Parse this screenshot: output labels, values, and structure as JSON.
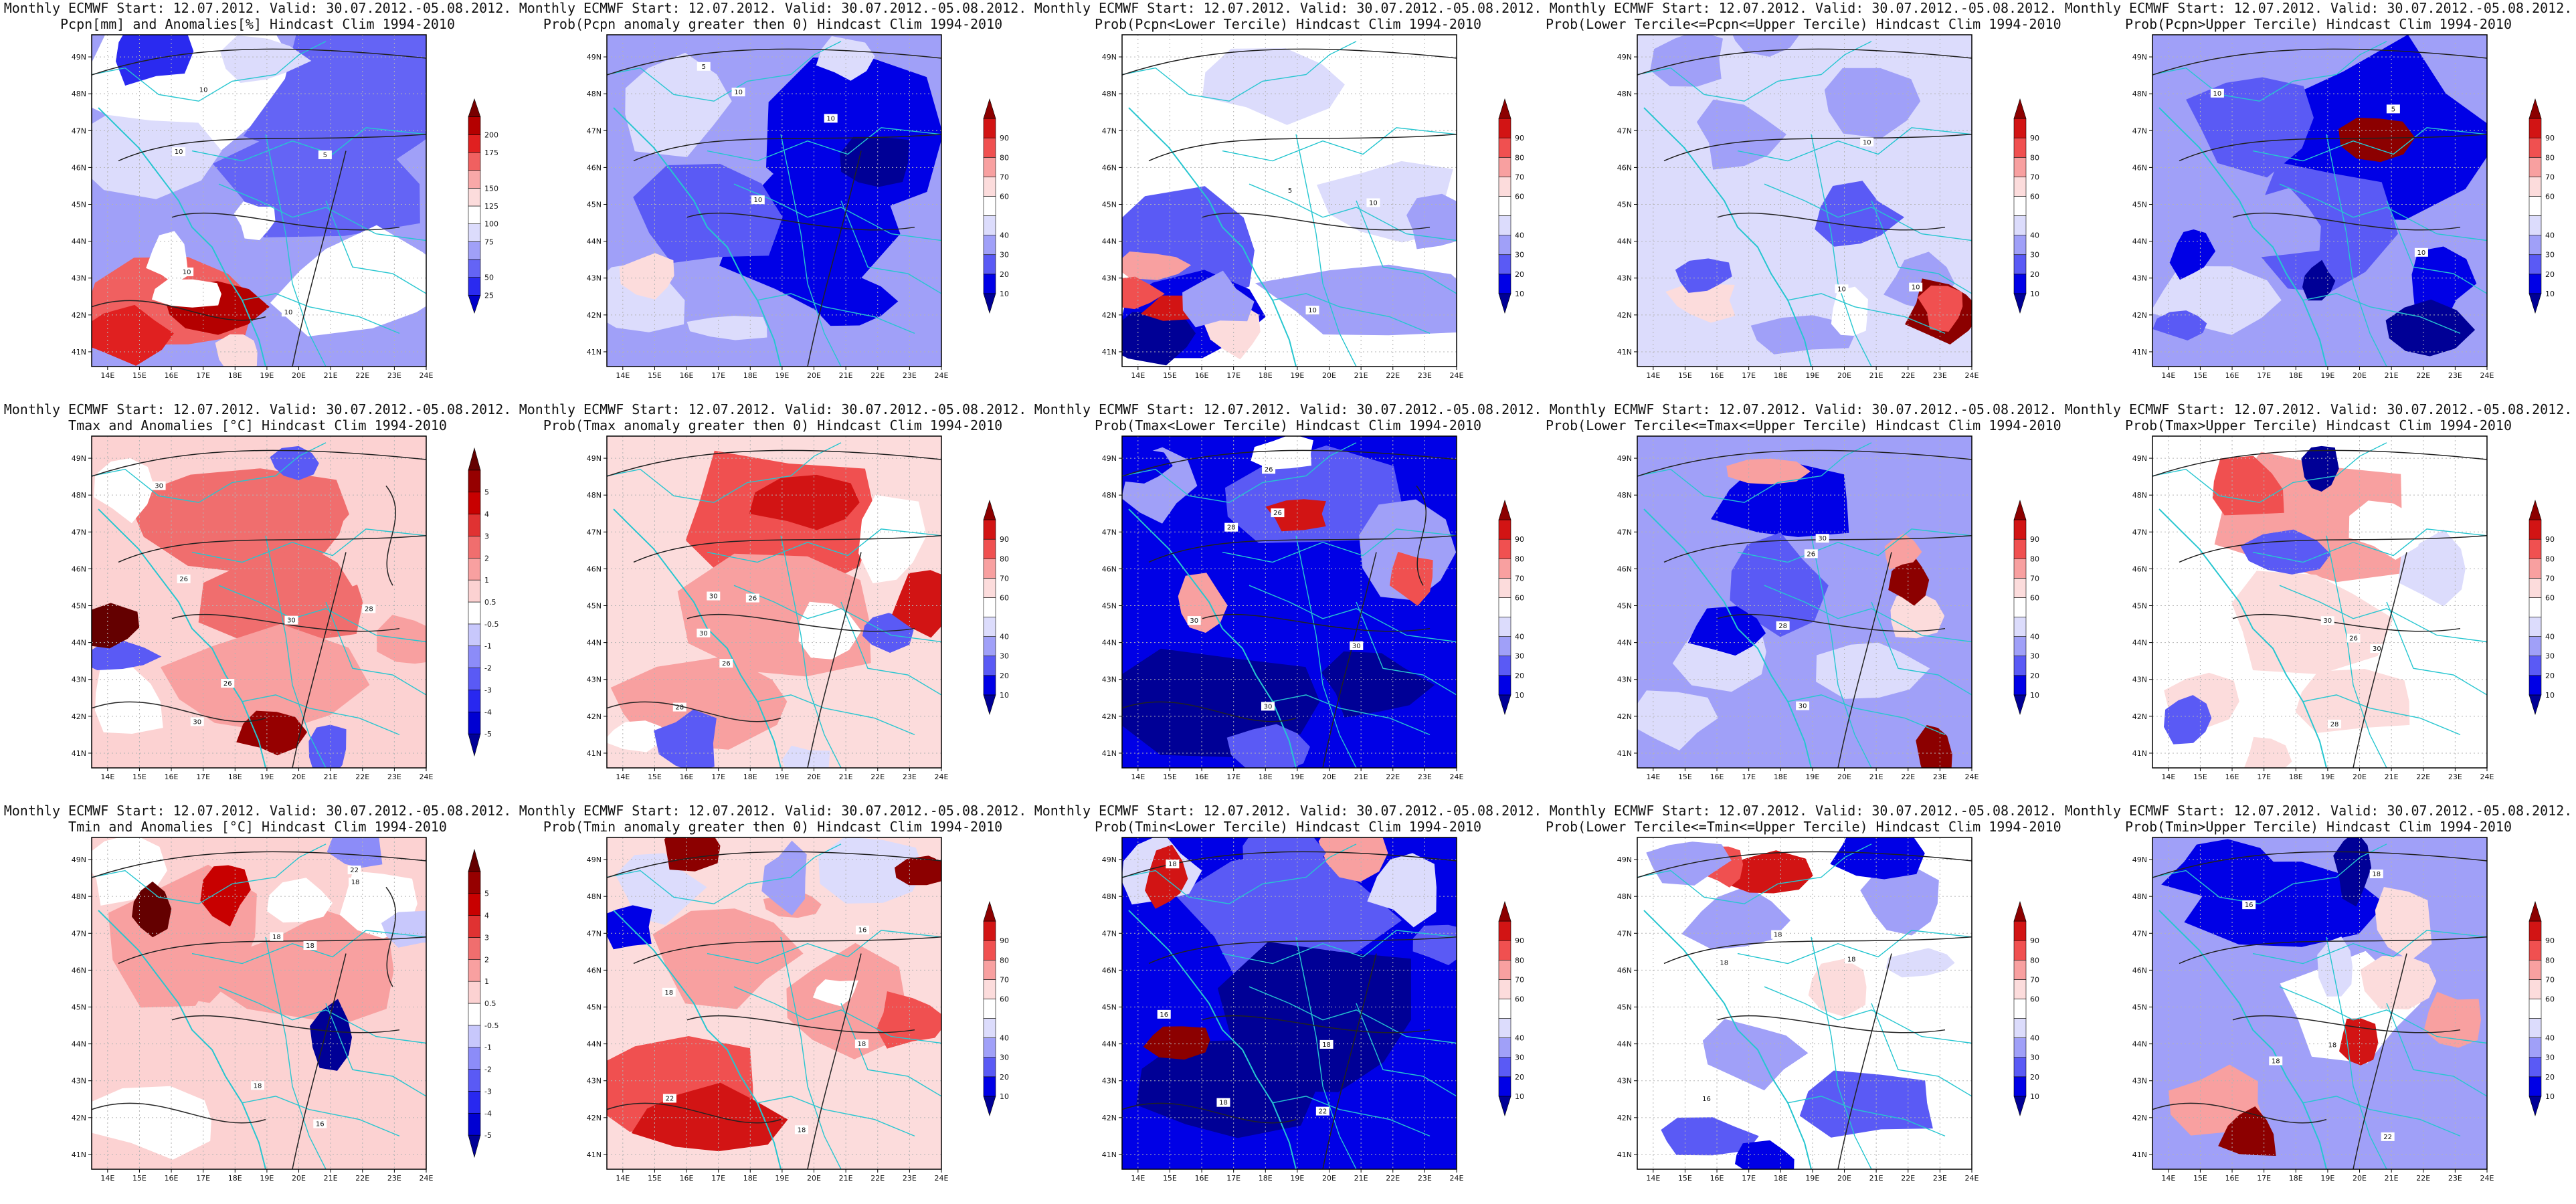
{
  "page": {
    "layout": "3 rows x 5 columns of lon/lat contour maps with vertical colorbars"
  },
  "axes": {
    "xticks": [
      "14E",
      "15E",
      "16E",
      "17E",
      "18E",
      "19E",
      "20E",
      "21E",
      "22E",
      "23E",
      "24E"
    ],
    "yticks": [
      "41N",
      "42N",
      "43N",
      "44N",
      "45N",
      "46N",
      "47N",
      "48N",
      "49N"
    ],
    "xlim": [
      13.5,
      24
    ],
    "ylim": [
      40.6,
      49.6
    ]
  },
  "colorbars": {
    "precip": {
      "labels": [
        "25",
        "50",
        "75",
        "100",
        "125",
        "150",
        "175",
        "200"
      ],
      "colors": [
        "#0000c8",
        "#2a2af0",
        "#6464f5",
        "#a0a0f8",
        "#dcdcfc",
        "#ffffff",
        "#fcdcdc",
        "#f8a8a8",
        "#f06060",
        "#e02020",
        "#b40000",
        "#780000"
      ]
    },
    "temp": {
      "labels": [
        "-5",
        "-4",
        "-3",
        "-2",
        "-1",
        "-0.5",
        "0.5",
        "1",
        "2",
        "3",
        "4",
        "5"
      ],
      "colors": [
        "#000096",
        "#0000d2",
        "#2828f0",
        "#5a5af5",
        "#8c8cf8",
        "#c8c8fc",
        "#ffffff",
        "#fcd2d2",
        "#f8a0a0",
        "#f06e6e",
        "#e03232",
        "#c80000",
        "#960000",
        "#640000"
      ]
    },
    "prob": {
      "labels": [
        "10",
        "20",
        "30",
        "40",
        "60",
        "70",
        "80",
        "90"
      ],
      "colors": [
        "#000096",
        "#0000e6",
        "#5a5af5",
        "#a0a0f8",
        "#dcdcfc",
        "#ffffff",
        "#fcdcdc",
        "#f8a0a0",
        "#f05050",
        "#d21414",
        "#8c0000"
      ]
    }
  },
  "panels": [
    {
      "title1": "Monthly ECMWF Start: 12.07.2012. Valid: 30.07.2012.-05.08.2012.",
      "title2": "Pcpn[mm] and Anomalies[%] Hindcast Clim 1994-2010",
      "colorbar": "precip",
      "pattern": "pcpn_anom",
      "contours": [
        "10",
        "10",
        "10",
        "10",
        "5"
      ]
    },
    {
      "title1": "Monthly ECMWF Start: 12.07.2012. Valid: 30.07.2012.-05.08.2012.",
      "title2": "Prob(Pcpn anomaly greater then 0) Hindcast Clim 1994-2010",
      "colorbar": "prob",
      "pattern": "pcpn_gt0",
      "contours": [
        "10",
        "10",
        "10",
        "5"
      ]
    },
    {
      "title1": "Monthly ECMWF Start: 12.07.2012. Valid: 30.07.2012.-05.08.2012.",
      "title2": "Prob(Pcpn<Lower Tercile) Hindcast Clim 1994-2010",
      "colorbar": "prob",
      "pattern": "pcpn_low",
      "contours": [
        "10",
        "10",
        "5"
      ]
    },
    {
      "title1": "Monthly ECMWF Start: 12.07.2012. Valid: 30.07.2012.-05.08.2012.",
      "title2": "Prob(Lower Tercile<=Pcpn<=Upper Tercile) Hindcast Clim 1994-2010",
      "colorbar": "prob",
      "pattern": "pcpn_mid",
      "contours": [
        "10",
        "10",
        "10"
      ]
    },
    {
      "title1": "Monthly ECMWF Start: 12.07.2012. Valid: 30.07.2012.-05.08.2012.",
      "title2": "Prob(Pcpn>Upper Tercile) Hindcast Clim 1994-2010",
      "colorbar": "prob",
      "pattern": "pcpn_up",
      "contours": [
        "10",
        "10",
        "5"
      ]
    },
    {
      "title1": "Monthly ECMWF Start: 12.07.2012. Valid: 30.07.2012.-05.08.2012.",
      "title2": "Tmax and Anomalies [°C] Hindcast Clim 1994-2010",
      "colorbar": "temp",
      "pattern": "tmax_anom",
      "contours": [
        "26",
        "30",
        "28",
        "26",
        "30",
        "30"
      ]
    },
    {
      "title1": "Monthly ECMWF Start: 12.07.2012. Valid: 30.07.2012.-05.08.2012.",
      "title2": "Prob(Tmax anomaly greater then 0) Hindcast Clim 1994-2010",
      "colorbar": "prob",
      "pattern": "tmax_gt0",
      "contours": [
        "26",
        "30",
        "28",
        "26",
        "30"
      ]
    },
    {
      "title1": "Monthly ECMWF Start: 12.07.2012. Valid: 30.07.2012.-05.08.2012.",
      "title2": "Prob(Tmax<Lower Tercile) Hindcast Clim 1994-2010",
      "colorbar": "prob",
      "pattern": "tmax_low",
      "contours": [
        "26",
        "30",
        "28",
        "26",
        "30",
        "30"
      ]
    },
    {
      "title1": "Monthly ECMWF Start: 12.07.2012. Valid: 30.07.2012.-05.08.2012.",
      "title2": "Prob(Lower Tercile<=Tmax<=Upper Tercile) Hindcast Clim 1994-2010",
      "colorbar": "prob",
      "pattern": "tmax_mid",
      "contours": [
        "26",
        "30",
        "28",
        "30"
      ]
    },
    {
      "title1": "Monthly ECMWF Start: 12.07.2012. Valid: 30.07.2012.-05.08.2012.",
      "title2": "Prob(Tmax>Upper Tercile) Hindcast Clim 1994-2010",
      "colorbar": "prob",
      "pattern": "tmax_up",
      "contours": [
        "26",
        "30",
        "28",
        "30"
      ]
    },
    {
      "title1": "Monthly ECMWF Start: 12.07.2012. Valid: 30.07.2012.-05.08.2012.",
      "title2": "Tmin and Anomalies [°C] Hindcast Clim 1994-2010",
      "colorbar": "temp",
      "pattern": "tmin_anom",
      "contours": [
        "16",
        "18",
        "18",
        "18",
        "18",
        "22"
      ]
    },
    {
      "title1": "Monthly ECMWF Start: 12.07.2012. Valid: 30.07.2012.-05.08.2012.",
      "title2": "Prob(Tmin anomaly greater then 0) Hindcast Clim 1994-2010",
      "colorbar": "prob",
      "pattern": "tmin_gt0",
      "contours": [
        "16",
        "18",
        "18",
        "18",
        "22"
      ]
    },
    {
      "title1": "Monthly ECMWF Start: 12.07.2012. Valid: 30.07.2012.-05.08.2012.",
      "title2": "Prob(Tmin<Lower Tercile) Hindcast Clim 1994-2010",
      "colorbar": "prob",
      "pattern": "tmin_low",
      "contours": [
        "16",
        "18",
        "18",
        "18",
        "22"
      ]
    },
    {
      "title1": "Monthly ECMWF Start: 12.07.2012. Valid: 30.07.2012.-05.08.2012.",
      "title2": "Prob(Lower Tercile<=Tmin<=Upper Tercile) Hindcast Clim 1994-2010",
      "colorbar": "prob",
      "pattern": "tmin_mid",
      "contours": [
        "16",
        "18",
        "18",
        "18"
      ]
    },
    {
      "title1": "Monthly ECMWF Start: 12.07.2012. Valid: 30.07.2012.-05.08.2012.",
      "title2": "Prob(Tmin>Upper Tercile) Hindcast Clim 1994-2010",
      "colorbar": "prob",
      "pattern": "tmin_up",
      "contours": [
        "16",
        "18",
        "18",
        "18",
        "22"
      ]
    }
  ],
  "chart_data": {
    "type": "heatmap",
    "description_series": [
      "Pcpn",
      "Tmax",
      "Tmin"
    ],
    "x": [
      "14E",
      "15E",
      "16E",
      "17E",
      "18E",
      "19E",
      "20E",
      "21E",
      "22E",
      "23E",
      "24E"
    ],
    "y": [
      "41N",
      "42N",
      "43N",
      "44N",
      "45N",
      "46N",
      "47N",
      "48N",
      "49N"
    ],
    "xlim": [
      13.5,
      24
    ],
    "ylim": [
      40.6,
      49.6
    ],
    "grid": true,
    "legend": "right colorbar per panel"
  }
}
